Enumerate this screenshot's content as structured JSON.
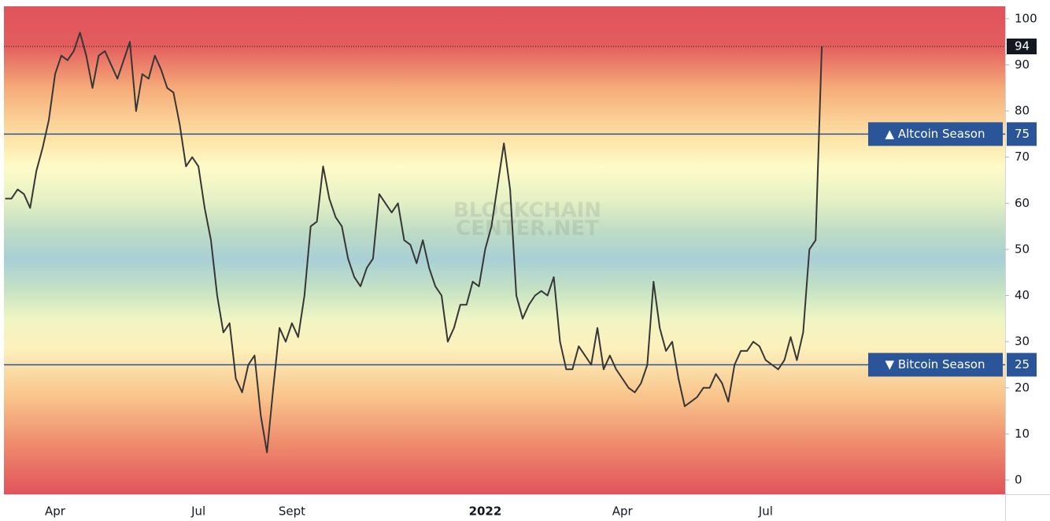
{
  "chart_data": {
    "type": "line",
    "categories": [
      null,
      null,
      null,
      null,
      null,
      null,
      null,
      null,
      "Apr",
      null,
      null,
      null,
      null,
      null,
      null,
      null,
      null,
      null,
      null,
      null,
      null,
      null,
      null,
      null,
      null,
      null,
      null,
      null,
      null,
      null,
      null,
      "Jul",
      null,
      null,
      null,
      null,
      null,
      null,
      null,
      null,
      null,
      null,
      null,
      null,
      null,
      null,
      "Sept",
      null,
      null,
      null,
      null,
      null,
      null,
      null,
      null,
      null,
      null,
      null,
      null,
      null,
      null,
      null,
      null,
      null,
      null,
      null,
      null,
      null,
      null,
      null,
      null,
      null,
      null,
      null,
      null,
      null,
      null,
      "2022",
      null,
      null,
      null,
      null,
      null,
      null,
      null,
      null,
      null,
      null,
      null,
      null,
      null,
      null,
      null,
      null,
      null,
      null,
      null,
      null,
      null,
      "Apr",
      null,
      null,
      null,
      null,
      null,
      null,
      null,
      null,
      null,
      null,
      null,
      null,
      null,
      null,
      null,
      null,
      null,
      null,
      null,
      null,
      null,
      null,
      "Jul",
      null,
      null,
      null,
      null,
      null,
      null,
      null,
      null,
      null
    ],
    "values": [
      61,
      61,
      63,
      62,
      59,
      67,
      72,
      78,
      88,
      92,
      91,
      93,
      97,
      92,
      85,
      92,
      93,
      90,
      87,
      91,
      95,
      80,
      88,
      87,
      92,
      89,
      85,
      84,
      77,
      68,
      70,
      68,
      59,
      52,
      40,
      32,
      34,
      22,
      19,
      25,
      27,
      14,
      6,
      20,
      33,
      30,
      34,
      31,
      40,
      55,
      56,
      68,
      61,
      57,
      55,
      48,
      44,
      42,
      46,
      48,
      62,
      60,
      58,
      60,
      52,
      51,
      47,
      52,
      46,
      42,
      40,
      30,
      33,
      38,
      38,
      43,
      42,
      50,
      55,
      64,
      73,
      63,
      40,
      35,
      38,
      40,
      41,
      40,
      44,
      30,
      24,
      24,
      29,
      27,
      25,
      33,
      24,
      27,
      24,
      22,
      20,
      19,
      21,
      25,
      43,
      33,
      28,
      30,
      22,
      16,
      17,
      18,
      20,
      20,
      23,
      21,
      17,
      25,
      28,
      28,
      30,
      29,
      26,
      25,
      24,
      26,
      31,
      26,
      32,
      50,
      52,
      94
    ],
    "color": "#363636",
    "ylim": [
      -3.07,
      102.7
    ],
    "yticks": [
      0,
      10,
      20,
      30,
      40,
      50,
      60,
      70,
      80,
      90,
      100
    ],
    "reference_lines": [
      {
        "value": 75,
        "label": "▲ Altcoin Season"
      },
      {
        "value": 25,
        "label": "▼ Bitcoin Season"
      }
    ],
    "reference_color": "#2a5599",
    "watermark": [
      "BLOCKCHAIN",
      "CENTER.NET"
    ]
  }
}
